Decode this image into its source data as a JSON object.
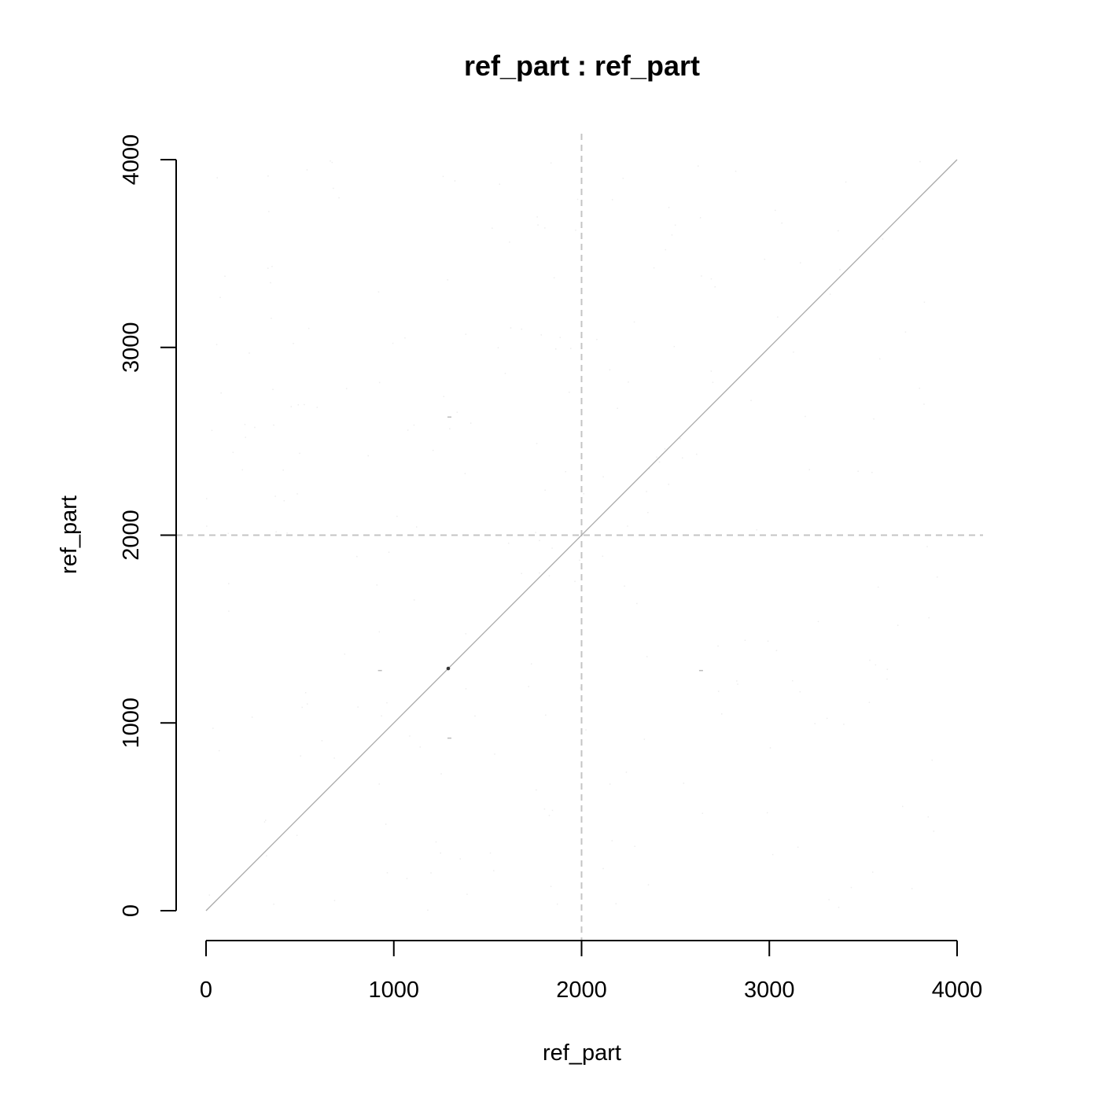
{
  "chart_data": {
    "type": "scatter",
    "title": "ref_part : ref_part",
    "xlabel": "ref_part",
    "ylabel": "ref_part",
    "xlim": [
      0,
      4000
    ],
    "ylim": [
      0,
      4000
    ],
    "xticks": [
      "0",
      "1000",
      "2000",
      "3000",
      "4000"
    ],
    "yticks": [
      "0",
      "1000",
      "2000",
      "3000",
      "4000"
    ],
    "grid": false,
    "reference_lines": {
      "x": 2000,
      "y": 2000,
      "style": "dashed",
      "color": "#c4c4c4"
    },
    "diagonal": {
      "from": [
        0,
        0
      ],
      "to": [
        4000,
        4000
      ],
      "color": "#a8a8a8"
    },
    "highlight_points": [
      {
        "x": 1290,
        "y": 1290
      }
    ],
    "minor_marks": [
      {
        "x": 1290,
        "y": 2630
      },
      {
        "x": 1290,
        "y": 920
      },
      {
        "x": 920,
        "y": 1280
      },
      {
        "x": 2630,
        "y": 1280
      }
    ],
    "colors": {
      "diagonal": "#a8a8a8",
      "highlight": "#333333",
      "dashed": "#c4c4c4"
    }
  }
}
